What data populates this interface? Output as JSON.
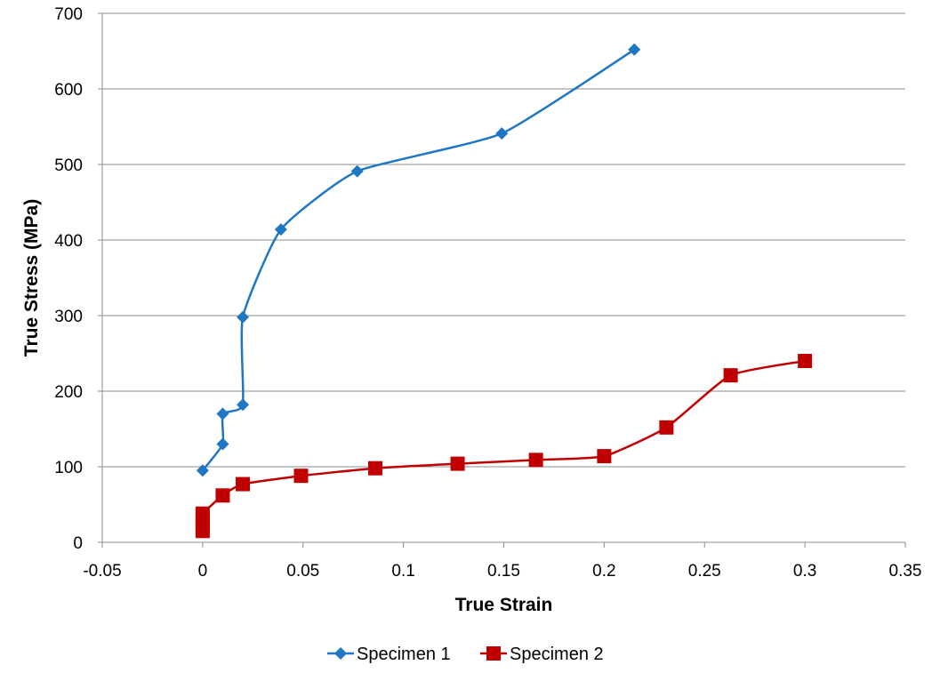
{
  "chart_data": {
    "type": "scatter",
    "xlabel": "True Strain",
    "ylabel": "True Stress (MPa)",
    "xlim": [
      -0.05,
      0.35
    ],
    "ylim": [
      0,
      700
    ],
    "xticks": [
      -0.05,
      0,
      0.05,
      0.1,
      0.15,
      0.2,
      0.25,
      0.3,
      0.35
    ],
    "xtick_labels": [
      "-0.05",
      "0",
      "0.05",
      "0.1",
      "0.15",
      "0.2",
      "0.25",
      "0.3",
      "0.35"
    ],
    "yticks": [
      0,
      100,
      200,
      300,
      400,
      500,
      600,
      700
    ],
    "ytick_labels": [
      "0",
      "100",
      "200",
      "300",
      "400",
      "500",
      "600",
      "700"
    ],
    "grid": "horizontal",
    "legend_position": "bottom",
    "smooth_lines": true,
    "series": [
      {
        "name": "Specimen 1",
        "color": "#1f77c4",
        "marker": "diamond",
        "points": [
          [
            0,
            95
          ],
          [
            0.01,
            130
          ],
          [
            0.01,
            170
          ],
          [
            0.02,
            182
          ],
          [
            0.02,
            298
          ],
          [
            0.039,
            414
          ],
          [
            0.077,
            491
          ],
          [
            0.149,
            541
          ],
          [
            0.215,
            652
          ]
        ]
      },
      {
        "name": "Specimen 2",
        "color": "#c00000",
        "marker": "square",
        "points": [
          [
            0,
            15
          ],
          [
            0,
            22
          ],
          [
            0,
            30
          ],
          [
            0,
            38
          ],
          [
            0.01,
            62
          ],
          [
            0.02,
            77
          ],
          [
            0.049,
            88
          ],
          [
            0.086,
            98
          ],
          [
            0.127,
            104
          ],
          [
            0.166,
            109
          ],
          [
            0.2,
            114
          ],
          [
            0.231,
            152
          ],
          [
            0.263,
            221
          ],
          [
            0.3,
            240
          ]
        ]
      }
    ]
  }
}
